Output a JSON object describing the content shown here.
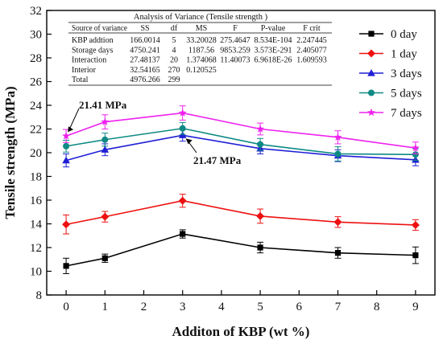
{
  "chart_data": {
    "type": "line",
    "xlabel": "Additon of KBP (wt %)",
    "ylabel": "Tensile strength (MPa)",
    "x": [
      0,
      1,
      3,
      5,
      7,
      9
    ],
    "xlim": [
      -0.5,
      9.5
    ],
    "ylim": [
      8,
      32
    ],
    "x_ticks": [
      0,
      1,
      2,
      3,
      4,
      5,
      6,
      7,
      8,
      9
    ],
    "y_ticks": [
      8,
      10,
      12,
      14,
      16,
      18,
      20,
      22,
      24,
      26,
      28,
      30,
      32
    ],
    "grid": false,
    "legend_placement": "top-right",
    "series": [
      {
        "name": "0 day",
        "color": "#000000",
        "marker": "square",
        "values": [
          10.45,
          11.1,
          13.15,
          12.0,
          11.55,
          11.35
        ],
        "errors": [
          0.65,
          0.35,
          0.35,
          0.45,
          0.45,
          0.7
        ]
      },
      {
        "name": "1 day",
        "color": "#ee1111",
        "marker": "diamond",
        "values": [
          13.95,
          14.6,
          15.95,
          14.65,
          14.15,
          13.9
        ],
        "errors": [
          0.8,
          0.45,
          0.55,
          0.6,
          0.45,
          0.45
        ]
      },
      {
        "name": "3 days",
        "color": "#1f1fd6",
        "marker": "triangle",
        "values": [
          19.35,
          20.25,
          21.47,
          20.35,
          19.75,
          19.4
        ],
        "errors": [
          0.55,
          0.5,
          0.5,
          0.45,
          0.5,
          0.5
        ]
      },
      {
        "name": "5 days",
        "color": "#0e8a84",
        "marker": "circle",
        "values": [
          20.55,
          21.1,
          22.05,
          20.7,
          19.9,
          19.85
        ],
        "errors": [
          0.5,
          0.55,
          0.5,
          0.5,
          0.6,
          0.5
        ]
      },
      {
        "name": "7 days",
        "color": "#ee22ee",
        "marker": "star",
        "values": [
          21.41,
          22.6,
          23.35,
          22.0,
          21.3,
          20.4
        ],
        "errors": [
          0.55,
          0.6,
          0.6,
          0.5,
          0.55,
          0.5
        ]
      }
    ],
    "annotations": [
      {
        "text": "21.41 MPa",
        "x": 0,
        "y": 21.41
      },
      {
        "text": "21.47 MPa",
        "x": 3,
        "y": 21.47
      }
    ],
    "inset_table": {
      "title": "Analysis of Variance (Tensile strength )",
      "headers": [
        "Source of variance",
        "SS",
        "df",
        "MS",
        "F",
        "P-value",
        "F crit"
      ],
      "rows": [
        [
          "KBP addtion",
          "166.0014",
          "5",
          "33.20028",
          "275.4647",
          "8.534E-104",
          "2.247445"
        ],
        [
          "Storage days",
          "4750.241",
          "4",
          "1187.56",
          "9853.259",
          "3.573E-291",
          "2.405077"
        ],
        [
          "Interaction",
          "27.48137",
          "20",
          "1.374068",
          "11.40073",
          "6.9618E-26",
          "1.609593"
        ],
        [
          "Interior",
          "32.54165",
          "270",
          "0.120525",
          "",
          "",
          ""
        ],
        [
          "Total",
          "4976.266",
          "299",
          "",
          "",
          "",
          ""
        ]
      ]
    }
  }
}
